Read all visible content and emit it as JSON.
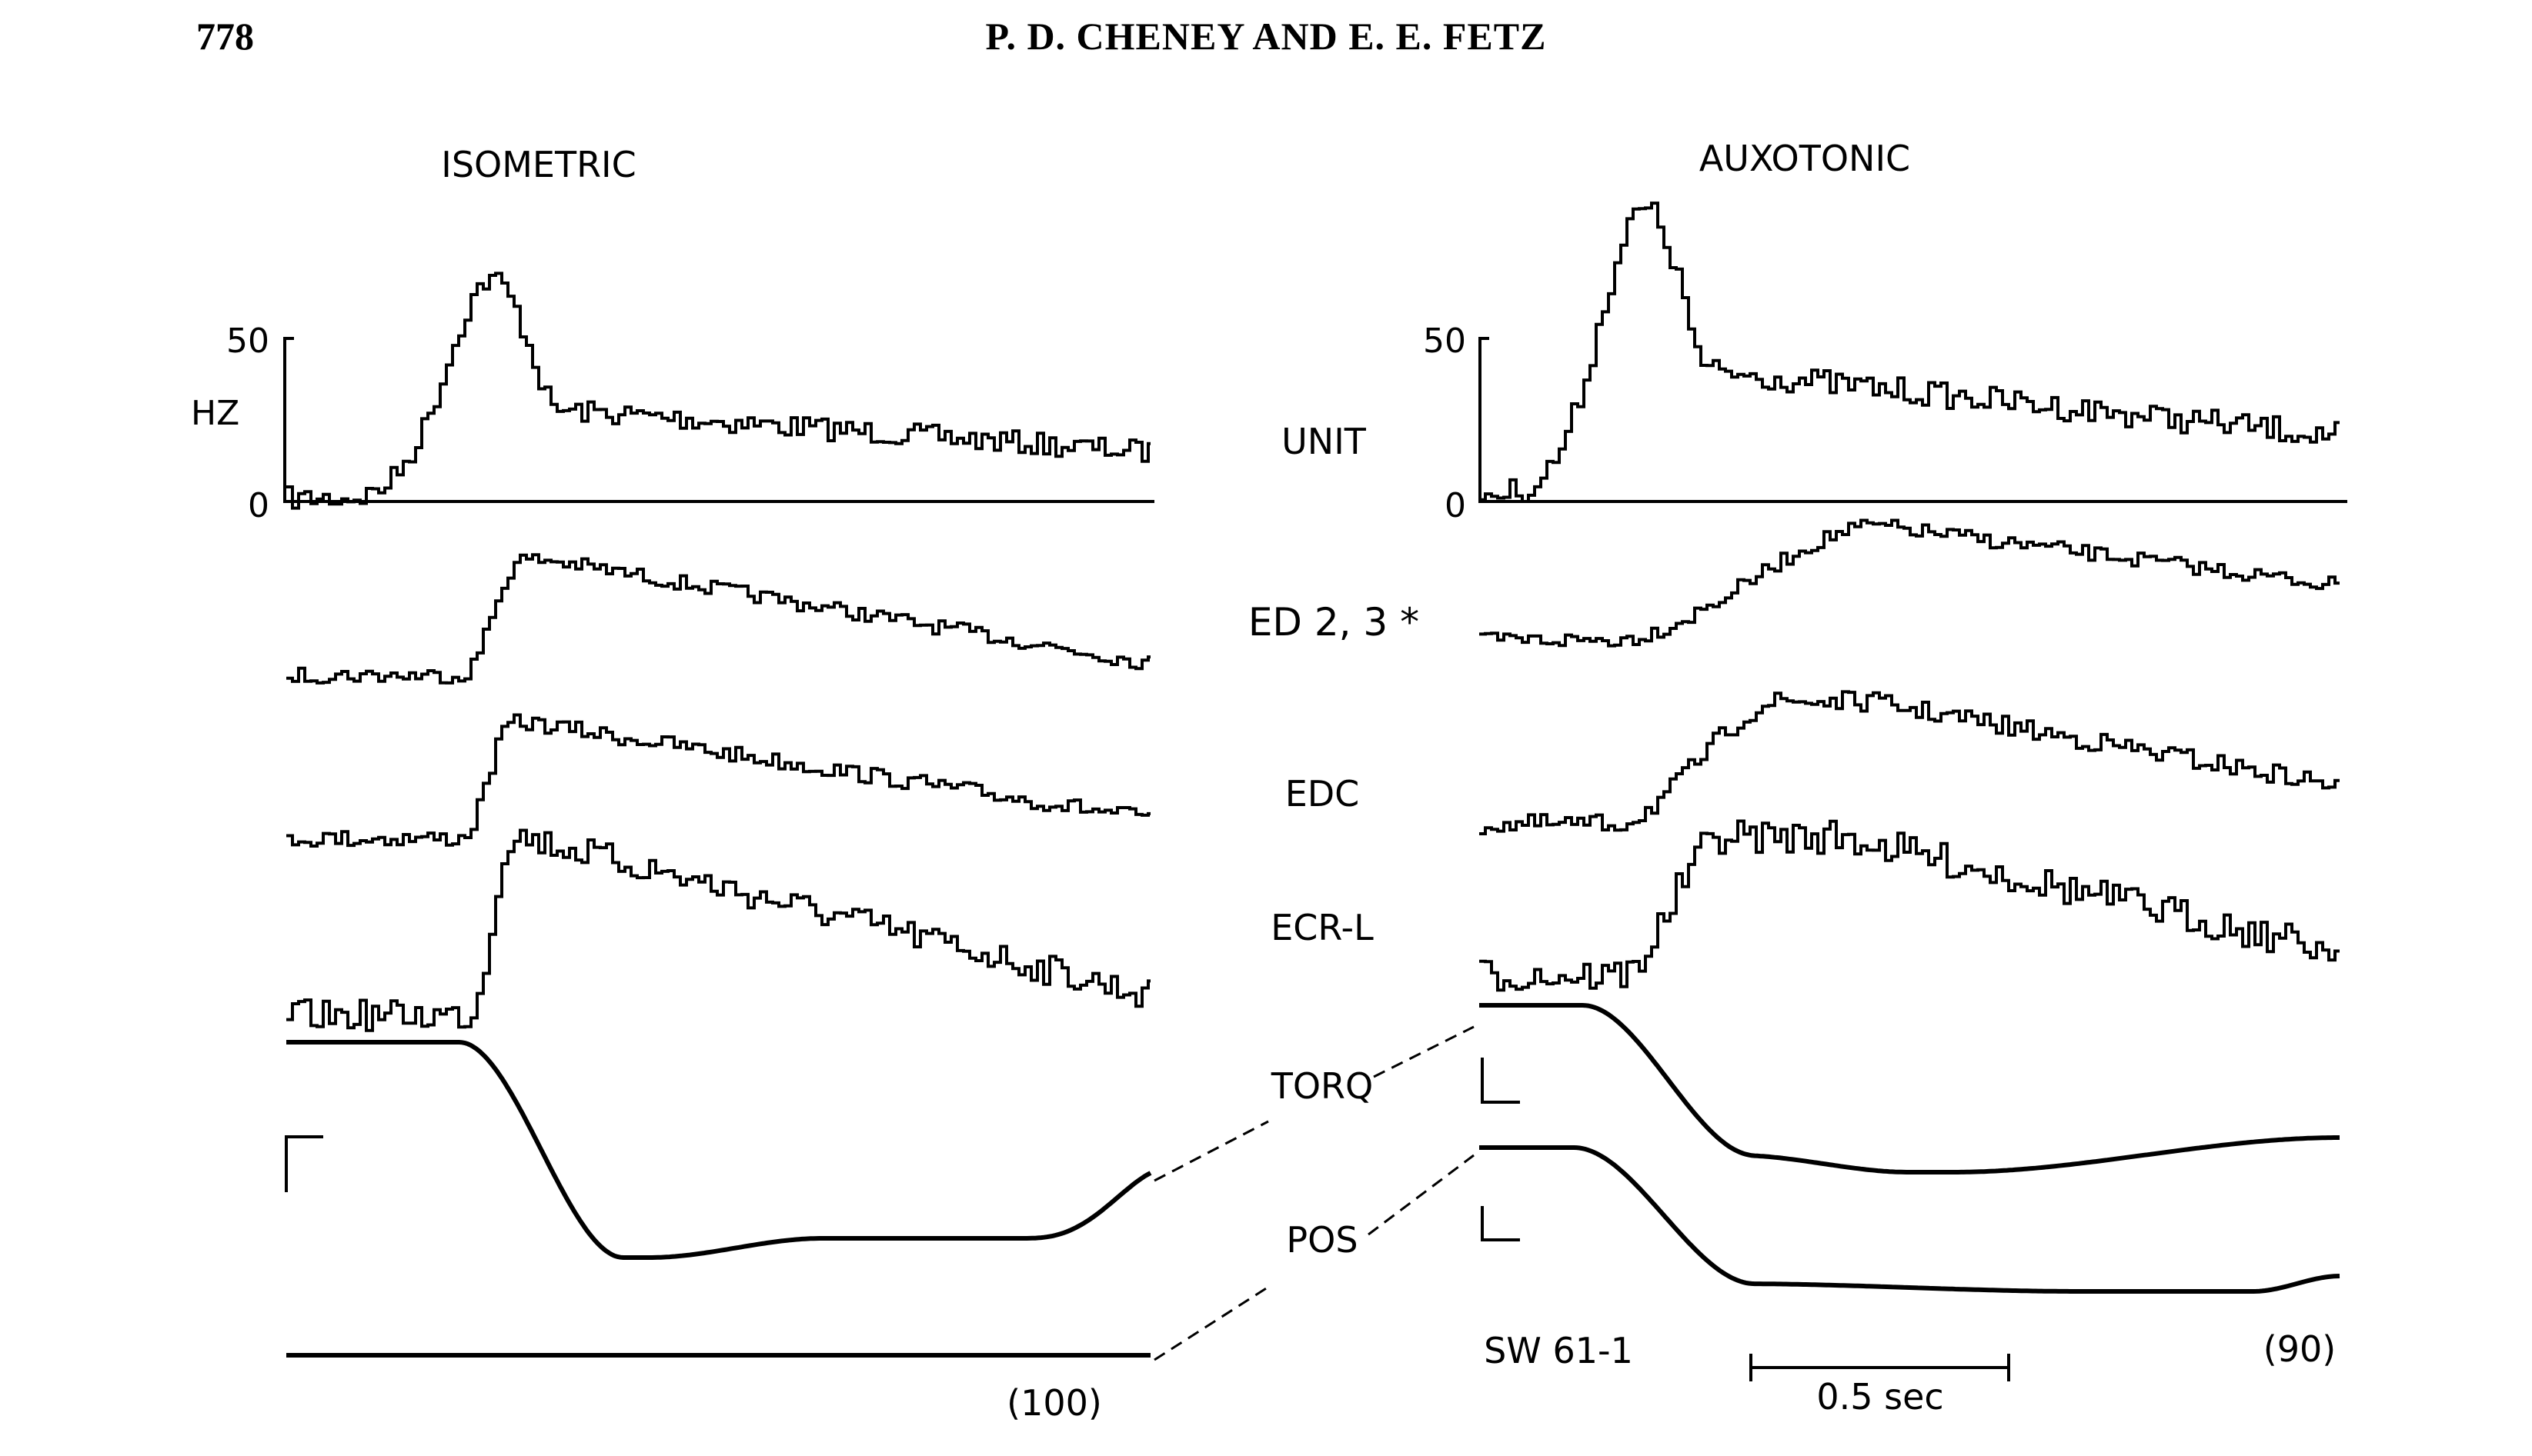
{
  "header": {
    "page_number": "778",
    "running_head": "P. D. CHENEY AND E. E. FETZ"
  },
  "figure": {
    "panels": [
      {
        "title": "ISOMETRIC",
        "trial_count": "(100)"
      },
      {
        "title": "AUXOTONIC",
        "trial_count": "(90)",
        "cell_id": "SW 61-1"
      }
    ],
    "rate_axis": {
      "unit": "HZ",
      "ticks": [
        "0",
        "50"
      ]
    },
    "trace_labels": [
      "UNIT",
      "ED 2, 3 *",
      "EDC",
      "ECR-L",
      "TORQ",
      "POS"
    ],
    "time_scale_label": "0.5 sec"
  }
}
